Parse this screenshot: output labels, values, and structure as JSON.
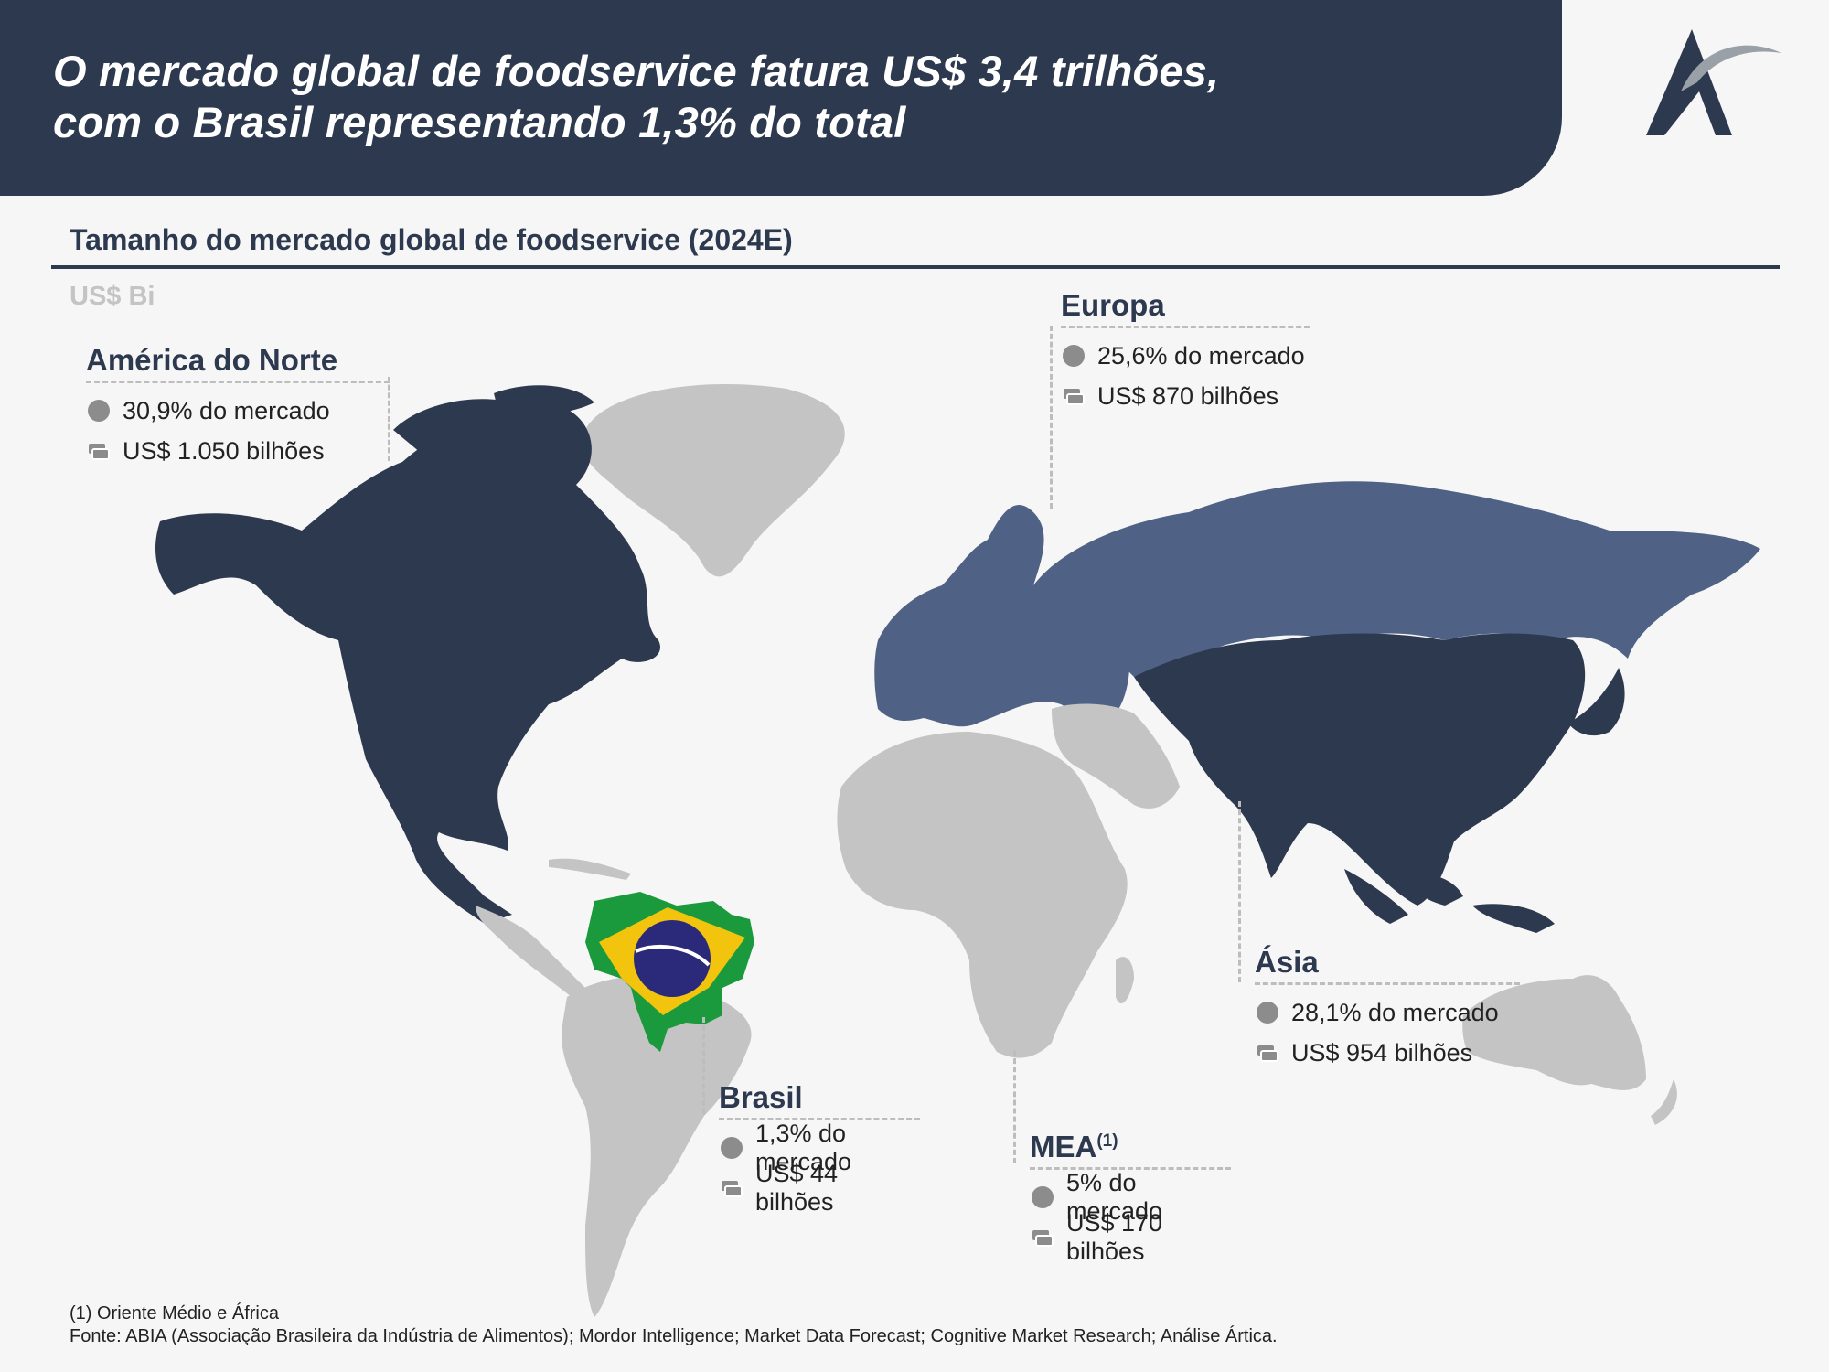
{
  "header": {
    "title_line1": "O mercado global de foodservice fatura US$ 3,4 trilhões,",
    "title_line2": "com o Brasil representando 1,3% do total"
  },
  "chart": {
    "title": "Tamanho do mercado global de foodservice (2024E)",
    "unit": "US$ Bi"
  },
  "regions": {
    "north_america": {
      "name": "América do Norte",
      "share": "30,9% do mercado",
      "value": "US$ 1.050 bilhões"
    },
    "europe": {
      "name": "Europa",
      "share": "25,6% do mercado",
      "value": "US$ 870 bilhões"
    },
    "asia": {
      "name": "Ásia",
      "share": "28,1% do mercado",
      "value": "US$ 954 bilhões"
    },
    "brazil": {
      "name": "Brasil",
      "share": "1,3% do mercado",
      "value": "US$ 44 bilhões"
    },
    "mea": {
      "name": "MEA",
      "footnote_ref": "(1)",
      "share": "5% do mercado",
      "value": "US$ 170 bilhões"
    }
  },
  "map_colors": {
    "north_america": "#2d394f",
    "asia": "#2d394f",
    "europe": "#4f6285",
    "other": "#c4c4c4",
    "brazil_green": "#1a9a3d",
    "brazil_yellow": "#f2c40d",
    "brazil_blue": "#2b2a7a"
  },
  "footer": {
    "note": "(1) Oriente Médio e África",
    "source": "Fonte: ABIA (Associação Brasileira da Indústria de Alimentos); Mordor Intelligence; Market Data Forecast; Cognitive Market Research; Análise Ártica."
  }
}
